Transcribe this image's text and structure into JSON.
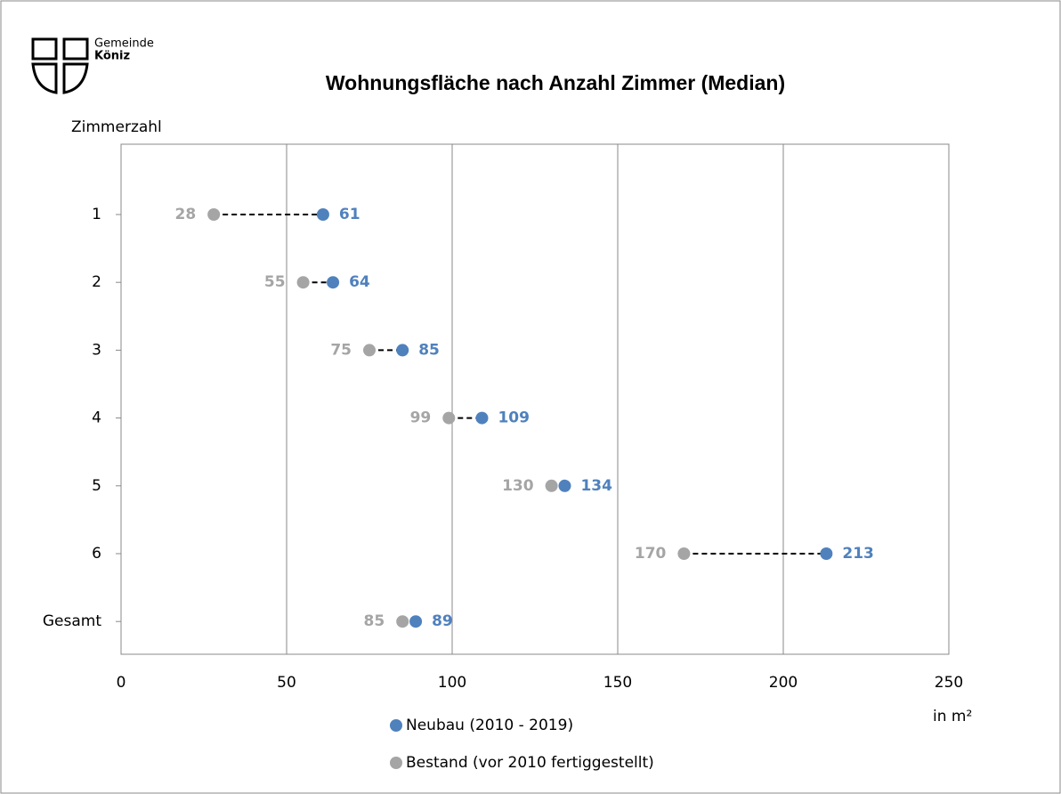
{
  "logo": {
    "line1": "Gemeinde",
    "line2": "Köniz"
  },
  "chart_data": {
    "type": "dumbbell",
    "title": "Wohnungsfläche nach Anzahl Zimmer (Median)",
    "y_axis_label": "Zimmerzahl",
    "x_axis_label": "in m²",
    "categories": [
      "1",
      "2",
      "3",
      "4",
      "5",
      "6",
      "Gesamt"
    ],
    "series": [
      {
        "name": "Neubau (2010 - 2019)",
        "color": "#4f81bd",
        "values": [
          61,
          64,
          85,
          109,
          134,
          213,
          89
        ]
      },
      {
        "name": "Bestand (vor 2010 fertiggestellt)",
        "color": "#a5a5a5",
        "values": [
          28,
          55,
          75,
          99,
          130,
          170,
          85
        ]
      }
    ],
    "xlim": [
      0,
      250
    ],
    "xticks": [
      0,
      50,
      100,
      150,
      200,
      250
    ],
    "grid": true
  }
}
